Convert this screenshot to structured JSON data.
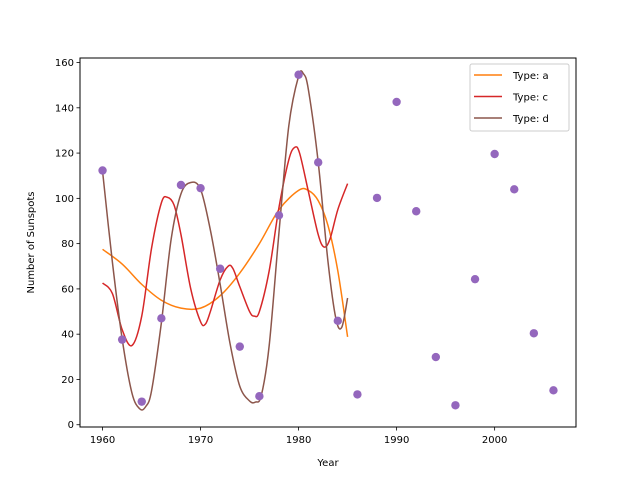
{
  "chart_data": {
    "type": "line",
    "title": "",
    "xlabel": "Year",
    "ylabel": "Number of Sunspots",
    "xlim": [
      1957.7,
      2008.3
    ],
    "ylim": [
      -1,
      162
    ],
    "xticks": [
      1960,
      1970,
      1980,
      1990,
      2000
    ],
    "yticks": [
      0,
      20,
      40,
      60,
      80,
      100,
      120,
      140,
      160
    ],
    "grid": false,
    "legend_position": "top-right",
    "scatter": {
      "color": "#9467bd",
      "x": [
        1960,
        1962,
        1964,
        1966,
        1968,
        1970,
        1972,
        1974,
        1976,
        1978,
        1980,
        1982,
        1984,
        1986,
        1988,
        1990,
        1992,
        1994,
        1996,
        1998,
        2000,
        2002,
        2004,
        2006
      ],
      "y": [
        112.3,
        37.6,
        10.2,
        47.0,
        105.9,
        104.5,
        68.9,
        34.5,
        12.6,
        92.5,
        154.6,
        115.9,
        45.9,
        13.4,
        100.2,
        142.6,
        94.3,
        29.9,
        8.6,
        64.3,
        119.6,
        104.0,
        40.4,
        15.2
      ]
    },
    "series": [
      {
        "name": "Type: a",
        "color": "#ff7f0e",
        "x": [
          1960,
          1962,
          1964,
          1966,
          1968,
          1970,
          1972,
          1974,
          1976,
          1978,
          1980,
          1981,
          1982,
          1983,
          1984,
          1985
        ],
        "y": [
          77.5,
          71,
          62,
          55,
          51.5,
          51.5,
          57,
          67,
          80,
          95,
          103.5,
          103.5,
          99,
          88,
          68,
          38.8
        ]
      },
      {
        "name": "Type: c",
        "color": "#d62728",
        "x": [
          1960,
          1961,
          1962,
          1963,
          1964,
          1965,
          1966,
          1966.6,
          1967.3,
          1968,
          1969,
          1970,
          1970.5,
          1971,
          1972,
          1972.8,
          1973.3,
          1974,
          1975,
          1975.5,
          1976,
          1977,
          1978,
          1979,
          1979.6,
          1980.1,
          1981,
          1982,
          1982.6,
          1983.2,
          1984,
          1985
        ],
        "y": [
          62.6,
          58,
          42,
          35,
          48,
          78,
          98,
          100.5,
          97,
          84,
          60,
          45.5,
          44.5,
          50,
          64,
          70,
          69,
          61,
          50,
          48,
          50,
          68,
          96,
          117,
          122.5,
          120,
          103,
          84,
          78.5,
          82,
          95,
          106.5
        ]
      },
      {
        "name": "Type: d",
        "color": "#8c564b",
        "x": [
          1960,
          1961,
          1962,
          1963,
          1963.8,
          1964.4,
          1965,
          1966,
          1967,
          1968,
          1969,
          1970,
          1971,
          1972,
          1973,
          1974,
          1975,
          1975.6,
          1976.2,
          1977,
          1978,
          1979,
          1980,
          1980.5,
          1981,
          1982,
          1983,
          1983.8,
          1984.4,
          1985
        ],
        "y": [
          112,
          72,
          38,
          14,
          7,
          8,
          15,
          45,
          82,
          102,
          107,
          104,
          86,
          62,
          36,
          17,
          10.5,
          10,
          13,
          35,
          85,
          132,
          154,
          155,
          148,
          116,
          72,
          47,
          43,
          56
        ]
      }
    ]
  }
}
